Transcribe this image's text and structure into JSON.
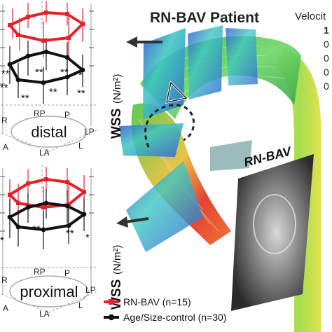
{
  "title": "RN-BAV Patient",
  "velocity_label": "Velocit",
  "velocity_ticks": [
    "1",
    "0",
    "0",
    "0",
    "0"
  ],
  "vessel_label": "RN-BAV",
  "wss_axis": {
    "symbol": "WSS",
    "unit": "(N/m²)"
  },
  "panels": {
    "top": {
      "label": "distal",
      "positions": [
        "R",
        "RP",
        "P",
        "LP",
        "L",
        "LA",
        "A"
      ],
      "stars": [
        "**",
        "**",
        "**",
        "*",
        "**",
        "**",
        "**",
        "**"
      ]
    },
    "bottom": {
      "label": "proximal",
      "positions": [
        "R",
        "RP",
        "P",
        "LP",
        "L",
        "LA",
        "A"
      ],
      "stars": [
        "**",
        "**",
        "*",
        "*"
      ]
    }
  },
  "legend": [
    {
      "label": "RN-BAV (n=15)",
      "color": "#e8202a"
    },
    {
      "label": "Age/Size-control (n=30)",
      "color": "#111111"
    }
  ],
  "colors": {
    "rnbav": "#e8202a",
    "control": "#111111",
    "flow_green": "#4ccf52",
    "flow_yellow": "#e8e43c",
    "flow_red": "#e8202a",
    "plane_blue": "#2a60d8"
  },
  "icons": {
    "arrow": "dark-arrow-icon",
    "dashed_arrow": "dashed-rotation-arrow-icon"
  }
}
